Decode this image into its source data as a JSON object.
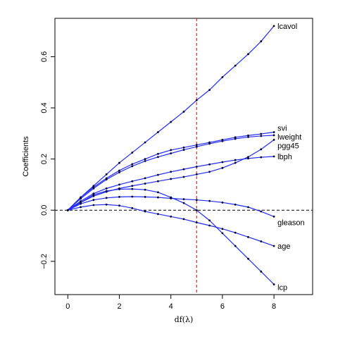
{
  "chart_data": {
    "type": "line",
    "xlabel": "df(λ)",
    "ylabel": "Coefficients",
    "xlim": [
      -0.5,
      9.5
    ],
    "ylim": [
      -0.33,
      0.75
    ],
    "x_ticks": [
      0,
      2,
      4,
      6,
      8
    ],
    "y_ticks": [
      -0.2,
      0.0,
      0.2,
      0.4,
      0.6
    ],
    "y_tick_labels": [
      "−0.2",
      "0.0",
      "0.2",
      "0.4",
      "0.6"
    ],
    "grid": false,
    "reference_lines": [
      {
        "orientation": "horizontal",
        "value": 0,
        "style": "dashed",
        "color": "#000000"
      },
      {
        "orientation": "vertical",
        "value": 5,
        "style": "dashed",
        "color": "#ff0000"
      }
    ],
    "series": [
      {
        "name": "lcavol",
        "color": "#1f2bff",
        "points": [
          [
            0,
            0
          ],
          [
            0.5,
            0.05
          ],
          [
            1,
            0.095
          ],
          [
            1.5,
            0.14
          ],
          [
            2,
            0.185
          ],
          [
            2.5,
            0.225
          ],
          [
            3,
            0.265
          ],
          [
            3.5,
            0.305
          ],
          [
            4,
            0.345
          ],
          [
            4.5,
            0.385
          ],
          [
            5,
            0.43
          ],
          [
            5.5,
            0.47
          ],
          [
            6,
            0.52
          ],
          [
            6.5,
            0.565
          ],
          [
            7,
            0.61
          ],
          [
            7.5,
            0.66
          ],
          [
            8,
            0.72
          ]
        ]
      },
      {
        "name": "svi",
        "color": "#1f2bff",
        "points": [
          [
            0,
            0
          ],
          [
            0.5,
            0.05
          ],
          [
            1,
            0.09
          ],
          [
            1.5,
            0.125
          ],
          [
            2,
            0.155
          ],
          [
            2.5,
            0.18
          ],
          [
            3,
            0.2
          ],
          [
            3.5,
            0.22
          ],
          [
            4,
            0.235
          ],
          [
            4.5,
            0.245
          ],
          [
            5,
            0.255
          ],
          [
            5.5,
            0.265
          ],
          [
            6,
            0.275
          ],
          [
            6.5,
            0.285
          ],
          [
            7,
            0.292
          ],
          [
            7.5,
            0.298
          ],
          [
            8,
            0.305
          ]
        ]
      },
      {
        "name": "lweight",
        "color": "#1f2bff",
        "points": [
          [
            0,
            0
          ],
          [
            0.5,
            0.045
          ],
          [
            1,
            0.085
          ],
          [
            1.5,
            0.12
          ],
          [
            2,
            0.148
          ],
          [
            2.5,
            0.172
          ],
          [
            3,
            0.192
          ],
          [
            3.5,
            0.208
          ],
          [
            4,
            0.222
          ],
          [
            4.5,
            0.236
          ],
          [
            5,
            0.248
          ],
          [
            5.5,
            0.26
          ],
          [
            6,
            0.27
          ],
          [
            6.5,
            0.279
          ],
          [
            7,
            0.286
          ],
          [
            7.5,
            0.29
          ],
          [
            8,
            0.293
          ]
        ]
      },
      {
        "name": "pgg45",
        "color": "#1f2bff",
        "points": [
          [
            0,
            0
          ],
          [
            0.5,
            0.03
          ],
          [
            1,
            0.055
          ],
          [
            1.5,
            0.072
          ],
          [
            2,
            0.085
          ],
          [
            2.5,
            0.095
          ],
          [
            3,
            0.104
          ],
          [
            3.5,
            0.113
          ],
          [
            4,
            0.122
          ],
          [
            4.5,
            0.13
          ],
          [
            5,
            0.14
          ],
          [
            5.5,
            0.15
          ],
          [
            6,
            0.165
          ],
          [
            6.5,
            0.185
          ],
          [
            7,
            0.208
          ],
          [
            7.5,
            0.238
          ],
          [
            8,
            0.275
          ]
        ]
      },
      {
        "name": "lbph",
        "color": "#1f2bff",
        "points": [
          [
            0,
            0
          ],
          [
            0.5,
            0.035
          ],
          [
            1,
            0.065
          ],
          [
            1.5,
            0.085
          ],
          [
            2,
            0.1
          ],
          [
            2.5,
            0.113
          ],
          [
            3,
            0.125
          ],
          [
            3.5,
            0.138
          ],
          [
            4,
            0.15
          ],
          [
            4.5,
            0.16
          ],
          [
            5,
            0.17
          ],
          [
            5.5,
            0.179
          ],
          [
            6,
            0.188
          ],
          [
            6.5,
            0.196
          ],
          [
            7,
            0.202
          ],
          [
            7.5,
            0.207
          ],
          [
            8,
            0.21
          ]
        ]
      },
      {
        "name": "gleason",
        "color": "#1f2bff",
        "points": [
          [
            0,
            0
          ],
          [
            0.5,
            0.025
          ],
          [
            1,
            0.04
          ],
          [
            1.5,
            0.048
          ],
          [
            2,
            0.052
          ],
          [
            2.5,
            0.053
          ],
          [
            3,
            0.052
          ],
          [
            3.5,
            0.05
          ],
          [
            4,
            0.046
          ],
          [
            4.5,
            0.043
          ],
          [
            5,
            0.04
          ],
          [
            5.5,
            0.036
          ],
          [
            6,
            0.03
          ],
          [
            6.5,
            0.022
          ],
          [
            7,
            0.012
          ],
          [
            7.5,
            -0.005
          ],
          [
            8,
            -0.025
          ]
        ]
      },
      {
        "name": "age",
        "color": "#1f2bff",
        "points": [
          [
            0,
            0
          ],
          [
            0.5,
            0.012
          ],
          [
            1,
            0.02
          ],
          [
            1.5,
            0.022
          ],
          [
            2,
            0.018
          ],
          [
            2.5,
            0.008
          ],
          [
            3,
            -0.005
          ],
          [
            3.5,
            -0.015
          ],
          [
            4,
            -0.025
          ],
          [
            4.5,
            -0.035
          ],
          [
            5,
            -0.048
          ],
          [
            5.5,
            -0.06
          ],
          [
            6,
            -0.073
          ],
          [
            6.5,
            -0.088
          ],
          [
            7,
            -0.105
          ],
          [
            7.5,
            -0.122
          ],
          [
            8,
            -0.14
          ]
        ]
      },
      {
        "name": "lcp",
        "color": "#1f2bff",
        "points": [
          [
            0,
            0
          ],
          [
            0.5,
            0.03
          ],
          [
            1,
            0.06
          ],
          [
            1.5,
            0.075
          ],
          [
            2,
            0.082
          ],
          [
            2.5,
            0.083
          ],
          [
            3,
            0.08
          ],
          [
            3.5,
            0.07
          ],
          [
            4,
            0.05
          ],
          [
            4.5,
            0.028
          ],
          [
            5,
            0.0
          ],
          [
            5.5,
            -0.04
          ],
          [
            6,
            -0.09
          ],
          [
            6.5,
            -0.14
          ],
          [
            7,
            -0.19
          ],
          [
            7.5,
            -0.24
          ],
          [
            8,
            -0.29
          ]
        ]
      }
    ]
  }
}
